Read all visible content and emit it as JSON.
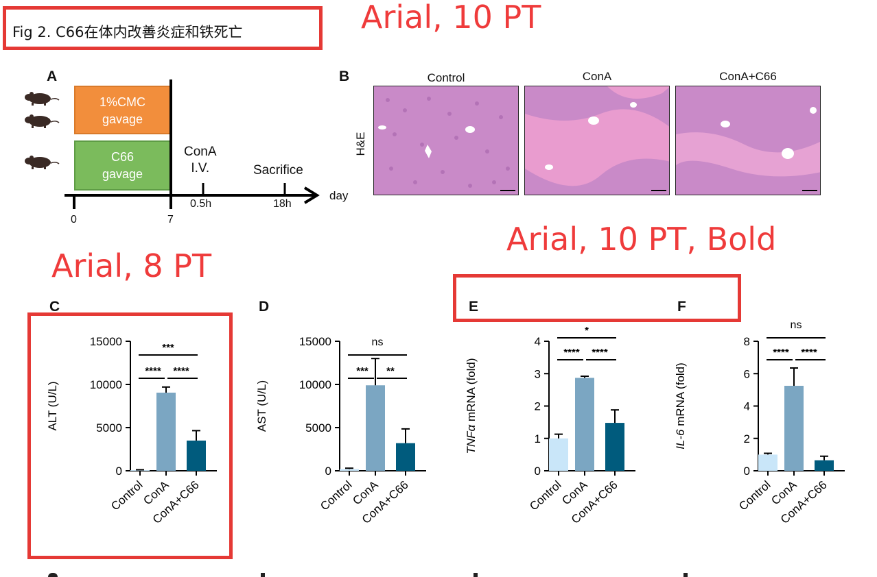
{
  "figure_title": "Fig 2. C66在体内改善炎症和铁死亡",
  "annotations": {
    "top": "Arial, 10 PT",
    "middle": "Arial, 10 PT, Bold",
    "left": "Arial, 8 PT"
  },
  "panels": {
    "A": {
      "letter": "A",
      "box1": [
        "1%CMC",
        "gavage"
      ],
      "box2": [
        "C66",
        "gavage"
      ],
      "cona_label": [
        "ConA",
        "I.V."
      ],
      "sacrifice_label": "Sacrifice",
      "tick_0": "0",
      "tick_7": "7",
      "tick_05h": "0.5h",
      "tick_18h": "18h",
      "axis_label": "day",
      "colors": {
        "box1": "#f28e3c",
        "box2": "#7bbb5c"
      }
    },
    "B": {
      "letter": "B",
      "row_label": "H&E",
      "columns": [
        "Control",
        "ConA",
        "ConA+C66"
      ]
    },
    "C": {
      "letter": "C"
    },
    "D": {
      "letter": "D"
    },
    "E": {
      "letter": "E"
    },
    "F": {
      "letter": "F"
    }
  },
  "chart_data": [
    {
      "panel": "C",
      "type": "bar",
      "categories": [
        "Control",
        "ConA",
        "ConA+C66"
      ],
      "values": [
        80,
        9050,
        3500
      ],
      "errors": [
        40,
        650,
        1150
      ],
      "ylabel": "ALT (U/L)",
      "ylim": [
        0,
        15000
      ],
      "yticks": [
        0,
        5000,
        10000,
        15000
      ],
      "bar_colors": [
        "#c9e6f9",
        "#7ba6c2",
        "#005b7d"
      ],
      "significance": [
        {
          "from": 1,
          "to": 2,
          "label": "****",
          "level": 1
        },
        {
          "from": 2,
          "to": 3,
          "label": "****",
          "level": 1
        },
        {
          "from": 1,
          "to": 3,
          "label": "***",
          "level": 2
        }
      ]
    },
    {
      "panel": "D",
      "type": "bar",
      "categories": [
        "Control",
        "ConA",
        "ConA+C66"
      ],
      "values": [
        200,
        9900,
        3200
      ],
      "errors": [
        100,
        3100,
        1650
      ],
      "ylabel": "AST (U/L)",
      "ylim": [
        0,
        15000
      ],
      "yticks": [
        0,
        5000,
        10000,
        15000
      ],
      "bar_colors": [
        "#c9e6f9",
        "#7ba6c2",
        "#005b7d"
      ],
      "significance": [
        {
          "from": 1,
          "to": 2,
          "label": "***",
          "level": 1
        },
        {
          "from": 2,
          "to": 3,
          "label": "**",
          "level": 1
        },
        {
          "from": 1,
          "to": 3,
          "label": "ns",
          "level": 2
        }
      ]
    },
    {
      "panel": "E",
      "type": "bar",
      "categories": [
        "Control",
        "ConA",
        "ConA+C66"
      ],
      "values": [
        1.0,
        2.87,
        1.48
      ],
      "errors": [
        0.13,
        0.05,
        0.4
      ],
      "ylabel_italic": "TNFα",
      "ylabel_rest": " mRNA (fold)",
      "ylim": [
        0,
        4
      ],
      "yticks": [
        0,
        1,
        2,
        3,
        4
      ],
      "bar_colors": [
        "#c9e6f9",
        "#7ba6c2",
        "#005b7d"
      ],
      "significance": [
        {
          "from": 1,
          "to": 2,
          "label": "****",
          "level": 1
        },
        {
          "from": 2,
          "to": 3,
          "label": "****",
          "level": 1
        },
        {
          "from": 1,
          "to": 3,
          "label": "*",
          "level": 2
        }
      ]
    },
    {
      "panel": "F",
      "type": "bar",
      "categories": [
        "Control",
        "ConA",
        "ConA+C66"
      ],
      "values": [
        1.0,
        5.25,
        0.65
      ],
      "errors": [
        0.08,
        1.1,
        0.25
      ],
      "ylabel_italic": "IL-6",
      "ylabel_rest": " mRNA (fold)",
      "ylim": [
        0,
        8
      ],
      "yticks": [
        0,
        2,
        4,
        6,
        8
      ],
      "bar_colors": [
        "#c9e6f9",
        "#7ba6c2",
        "#005b7d"
      ],
      "significance": [
        {
          "from": 1,
          "to": 2,
          "label": "****",
          "level": 1
        },
        {
          "from": 2,
          "to": 3,
          "label": "****",
          "level": 1
        },
        {
          "from": 1,
          "to": 3,
          "label": "ns",
          "level": 2
        }
      ]
    }
  ]
}
